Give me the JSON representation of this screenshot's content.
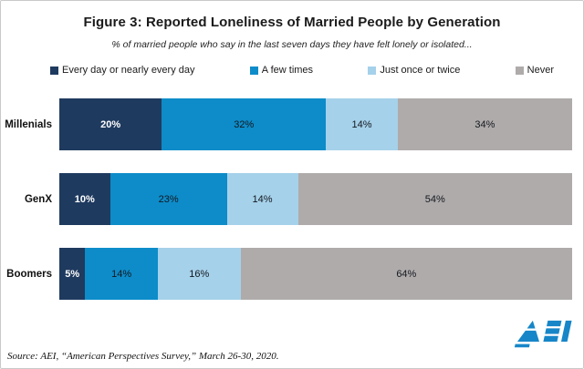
{
  "frame": {
    "title": "Figure 3: Reported Loneliness of Married People by Generation",
    "subtitle": "% of married people who say in the last seven days they have felt lonely or isolated..."
  },
  "chart_data": {
    "type": "bar",
    "orientation": "horizontal",
    "stacked": true,
    "unit": "%",
    "xlim": [
      0,
      100
    ],
    "grid": false,
    "legend_position": "top",
    "value_label_format": "{v}%",
    "categories": [
      "Millenials",
      "GenX",
      "Boomers"
    ],
    "series": [
      {
        "name": "Every day or nearly every day",
        "color": "#1F3A5F",
        "label_color": "#FFFFFF",
        "values": [
          20,
          10,
          5
        ]
      },
      {
        "name": "A few times",
        "color": "#0D8CC9",
        "label_color": "#14181F",
        "values": [
          32,
          23,
          14
        ]
      },
      {
        "name": "Just once or twice",
        "color": "#A5D1EA",
        "label_color": "#14181F",
        "values": [
          14,
          14,
          16
        ]
      },
      {
        "name": "Never",
        "color": "#AFABAB",
        "label_color": "#14181F",
        "values": [
          34,
          54,
          64
        ]
      }
    ]
  },
  "footer": {
    "source": "Source: AEI, “American Perspectives Survey,” March 26-30, 2020.",
    "logo_text": "AEI",
    "logo_color": "#1786C8"
  }
}
